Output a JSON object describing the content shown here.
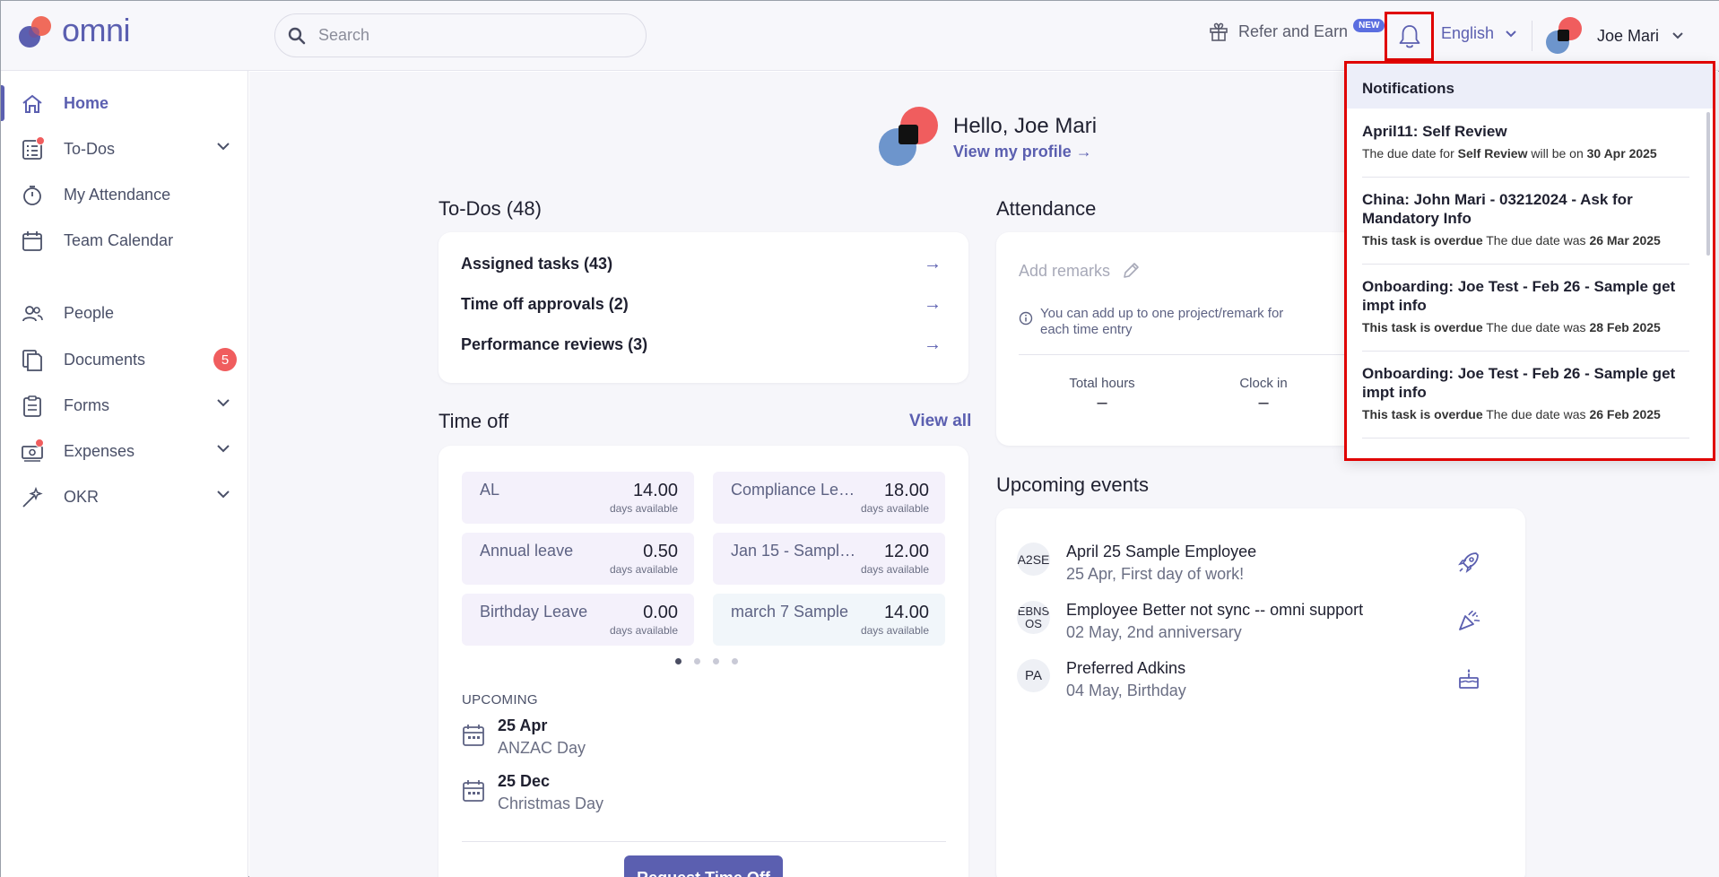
{
  "app": {
    "name": "omni"
  },
  "colors": {
    "accent": "#5b5fb0",
    "alert": "#f05d5e",
    "highlight": "#e00000"
  },
  "header": {
    "search_placeholder": "Search",
    "refer_label": "Refer and Earn",
    "new_badge": "NEW",
    "language": "English",
    "user_name": "Joe Mari"
  },
  "sidebar": {
    "items": [
      {
        "label": "Home",
        "icon": "home-icon"
      },
      {
        "label": "To-Dos",
        "icon": "checklist-icon"
      },
      {
        "label": "My Attendance",
        "icon": "stopwatch-icon"
      },
      {
        "label": "Team Calendar",
        "icon": "calendar-icon"
      },
      {
        "label": "People",
        "icon": "people-icon"
      },
      {
        "label": "Documents",
        "icon": "documents-icon",
        "badge": "5"
      },
      {
        "label": "Forms",
        "icon": "clipboard-icon"
      },
      {
        "label": "Expenses",
        "icon": "cash-icon"
      },
      {
        "label": "OKR",
        "icon": "wand-icon"
      }
    ]
  },
  "greeting": {
    "title": "Hello, Joe Mari",
    "link": "View my profile →"
  },
  "todos": {
    "title": "To-Dos (48)",
    "rows": [
      {
        "label": "Assigned tasks (43)"
      },
      {
        "label": "Time off approvals (2)"
      },
      {
        "label": "Performance reviews (3)"
      }
    ]
  },
  "timeoff": {
    "title": "Time off",
    "view_all": "View all",
    "unit": "days available",
    "tiles": [
      {
        "name": "AL",
        "value": "14.00"
      },
      {
        "name": "Compliance Leave",
        "value": "18.00"
      },
      {
        "name": "Annual leave",
        "value": "0.50"
      },
      {
        "name": "Jan 15 - Sample ...",
        "value": "12.00"
      },
      {
        "name": "Birthday Leave",
        "value": "0.00"
      },
      {
        "name": "march 7 Sample",
        "value": "14.00"
      }
    ],
    "upcoming_label": "UPCOMING",
    "holidays": [
      {
        "date": "25 Apr",
        "name": "ANZAC Day"
      },
      {
        "date": "25 Dec",
        "name": "Christmas Day"
      }
    ],
    "request_button": "Request Time Off"
  },
  "attendance": {
    "title": "Attendance",
    "remarks_placeholder": "Add remarks",
    "info": "You can add up to one project/remark for each time entry",
    "total_hours_label": "Total hours",
    "total_hours_value": "–",
    "clock_in_label": "Clock in",
    "clock_in_value": "–"
  },
  "events": {
    "title": "Upcoming events",
    "items": [
      {
        "avatar": "A2SE",
        "name": "April 25 Sample Employee",
        "sub": "25 Apr, First day of work!",
        "icon": "rocket-icon"
      },
      {
        "avatar": "EBNS OS",
        "name": "Employee Better not sync -- omni support",
        "sub": "02 May, 2nd anniversary",
        "icon": "party-popper-icon"
      },
      {
        "avatar": "PA",
        "name": "Preferred Adkins",
        "sub": "04 May, Birthday",
        "icon": "cake-icon"
      }
    ]
  },
  "notifications": {
    "title": "Notifications",
    "items": [
      {
        "title": "April11: Self Review",
        "lead": "The due date for ",
        "lead_bold": "Self Review",
        "mid": " will be on ",
        "date": "30 Apr 2025"
      },
      {
        "title": "China: John Mari - 03212024 - Ask for Mandatory Info",
        "lead": "",
        "lead_bold": "This task is overdue",
        "mid": " The due date was ",
        "date": "26 Mar 2025"
      },
      {
        "title": "Onboarding: Joe Test - Feb 26 - Sample get impt info",
        "lead": "",
        "lead_bold": "This task is overdue",
        "mid": " The due date was ",
        "date": "28 Feb 2025"
      },
      {
        "title": "Onboarding: Joe Test - Feb 26 - Sample get impt info",
        "lead": "",
        "lead_bold": "This task is overdue",
        "mid": " The due date was ",
        "date": "26 Feb 2025"
      }
    ]
  }
}
